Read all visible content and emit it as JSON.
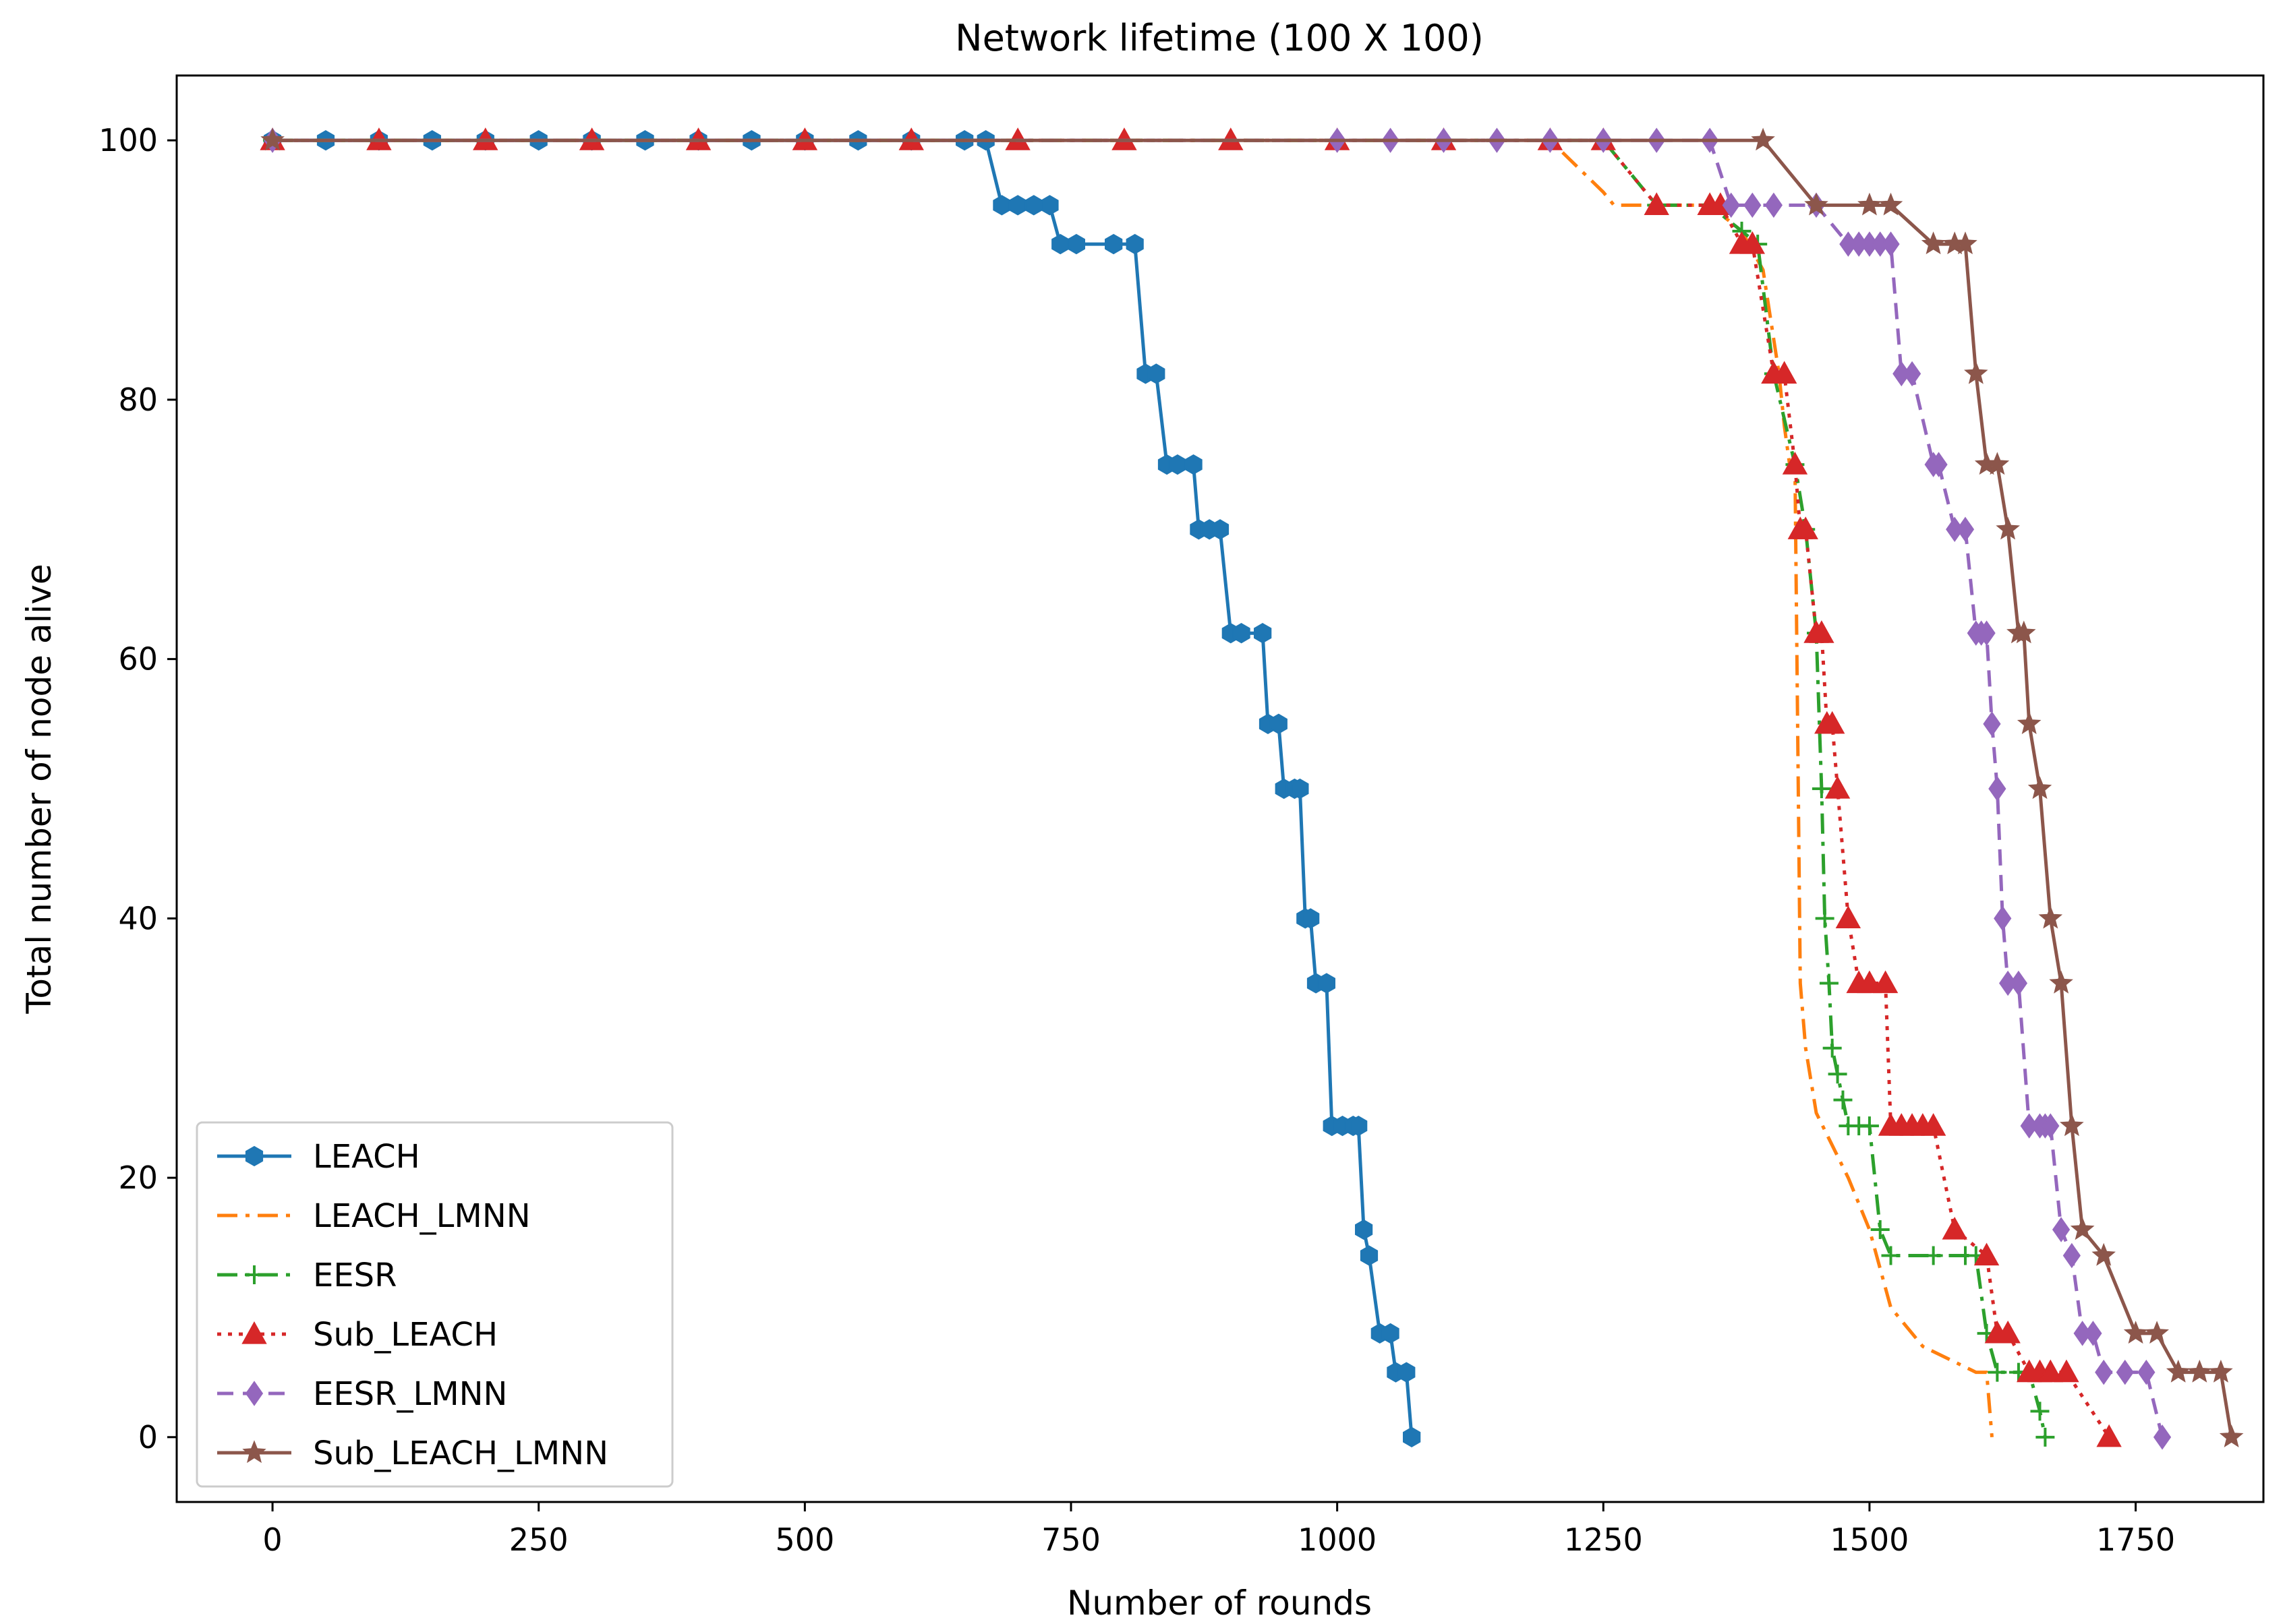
{
  "chart_data": {
    "type": "line",
    "title": "Network lifetime (100 X 100)",
    "xlabel": "Number of rounds",
    "ylabel": "Total number of node alive",
    "xlim": [
      -90,
      1870
    ],
    "ylim": [
      -5,
      105
    ],
    "xticks": [
      0,
      250,
      500,
      750,
      1000,
      1250,
      1500,
      1750
    ],
    "yticks": [
      0,
      20,
      40,
      60,
      80,
      100
    ],
    "grid": false,
    "legend_position": "lower-left",
    "series": [
      {
        "name": "LEACH",
        "color": "#1f77b4",
        "dash": "solid",
        "marker": "hexagon",
        "x": [
          0,
          50,
          100,
          150,
          200,
          250,
          300,
          350,
          400,
          450,
          500,
          550,
          600,
          650,
          670,
          685,
          700,
          715,
          730,
          740,
          755,
          790,
          810,
          820,
          830,
          840,
          850,
          865,
          870,
          880,
          890,
          900,
          910,
          930,
          935,
          945,
          950,
          960,
          965,
          970,
          975,
          980,
          990,
          995,
          1005,
          1015,
          1020,
          1025,
          1030,
          1040,
          1050,
          1055,
          1065,
          1070
        ],
        "y": [
          100,
          100,
          100,
          100,
          100,
          100,
          100,
          100,
          100,
          100,
          100,
          100,
          100,
          100,
          100,
          95,
          95,
          95,
          95,
          92,
          92,
          92,
          92,
          82,
          82,
          75,
          75,
          75,
          70,
          70,
          70,
          62,
          62,
          62,
          55,
          55,
          50,
          50,
          50,
          40,
          40,
          35,
          35,
          24,
          24,
          24,
          24,
          16,
          14,
          8,
          8,
          5,
          5,
          0
        ]
      },
      {
        "name": "LEACH_LMNN",
        "color": "#ff7f0e",
        "dash": "dashdot",
        "marker": "none",
        "x": [
          0,
          1200,
          1250,
          1260,
          1300,
          1350,
          1380,
          1400,
          1415,
          1420,
          1425,
          1430,
          1435,
          1440,
          1450,
          1480,
          1500,
          1520,
          1550,
          1600,
          1610,
          1615
        ],
        "y": [
          100,
          100,
          96,
          95,
          95,
          95,
          93,
          90,
          82,
          78,
          75,
          75,
          35,
          30,
          25,
          20,
          16,
          10,
          7,
          5,
          5,
          0
        ]
      },
      {
        "name": "EESR",
        "color": "#2ca02c",
        "dash": "dashdot",
        "marker": "plus",
        "x": [
          0,
          1250,
          1300,
          1350,
          1380,
          1395,
          1410,
          1430,
          1440,
          1450,
          1455,
          1458,
          1462,
          1465,
          1470,
          1475,
          1480,
          1490,
          1500,
          1510,
          1520,
          1560,
          1590,
          1600,
          1610,
          1620,
          1640,
          1650,
          1660,
          1665
        ],
        "y": [
          100,
          100,
          95,
          95,
          93,
          92,
          82,
          75,
          70,
          62,
          50,
          40,
          35,
          30,
          28,
          26,
          24,
          24,
          24,
          16,
          14,
          14,
          14,
          14,
          8,
          5,
          5,
          5,
          2,
          0
        ]
      },
      {
        "name": "Sub_LEACH",
        "color": "#d62728",
        "dash": "dotted",
        "marker": "triangle",
        "x": [
          0,
          100,
          200,
          300,
          400,
          500,
          600,
          700,
          800,
          900,
          1000,
          1100,
          1200,
          1250,
          1300,
          1350,
          1360,
          1380,
          1390,
          1410,
          1420,
          1430,
          1435,
          1440,
          1450,
          1455,
          1460,
          1465,
          1470,
          1480,
          1490,
          1500,
          1515,
          1520,
          1530,
          1540,
          1550,
          1560,
          1580,
          1610,
          1620,
          1630,
          1650,
          1660,
          1670,
          1685,
          1725
        ],
        "y": [
          100,
          100,
          100,
          100,
          100,
          100,
          100,
          100,
          100,
          100,
          100,
          100,
          100,
          100,
          95,
          95,
          95,
          92,
          92,
          82,
          82,
          75,
          70,
          70,
          62,
          62,
          55,
          55,
          50,
          40,
          35,
          35,
          35,
          24,
          24,
          24,
          24,
          24,
          16,
          14,
          8,
          8,
          5,
          5,
          5,
          5,
          0
        ]
      },
      {
        "name": "EESR_LMNN",
        "color": "#9467bd",
        "dash": "dashed",
        "marker": "diamond",
        "x": [
          0,
          1000,
          1050,
          1100,
          1150,
          1200,
          1250,
          1300,
          1350,
          1370,
          1390,
          1410,
          1450,
          1480,
          1490,
          1500,
          1510,
          1520,
          1530,
          1540,
          1560,
          1565,
          1580,
          1590,
          1600,
          1605,
          1610,
          1615,
          1620,
          1625,
          1630,
          1640,
          1650,
          1660,
          1665,
          1670,
          1680,
          1690,
          1700,
          1710,
          1720,
          1740,
          1760,
          1775
        ],
        "y": [
          100,
          100,
          100,
          100,
          100,
          100,
          100,
          100,
          100,
          95,
          95,
          95,
          95,
          92,
          92,
          92,
          92,
          92,
          82,
          82,
          75,
          75,
          70,
          70,
          62,
          62,
          62,
          55,
          50,
          40,
          35,
          35,
          24,
          24,
          24,
          24,
          16,
          14,
          8,
          8,
          5,
          5,
          5,
          0
        ]
      },
      {
        "name": "Sub_LEACH_LMNN",
        "color": "#8c564b",
        "dash": "solid",
        "marker": "star",
        "x": [
          0,
          1400,
          1450,
          1500,
          1520,
          1560,
          1580,
          1590,
          1600,
          1610,
          1620,
          1630,
          1640,
          1645,
          1650,
          1660,
          1670,
          1680,
          1690,
          1700,
          1720,
          1750,
          1770,
          1790,
          1810,
          1830,
          1840
        ],
        "y": [
          100,
          100,
          95,
          95,
          95,
          92,
          92,
          92,
          82,
          75,
          75,
          70,
          62,
          62,
          55,
          50,
          40,
          35,
          24,
          16,
          14,
          8,
          8,
          5,
          5,
          5,
          0
        ]
      }
    ]
  }
}
